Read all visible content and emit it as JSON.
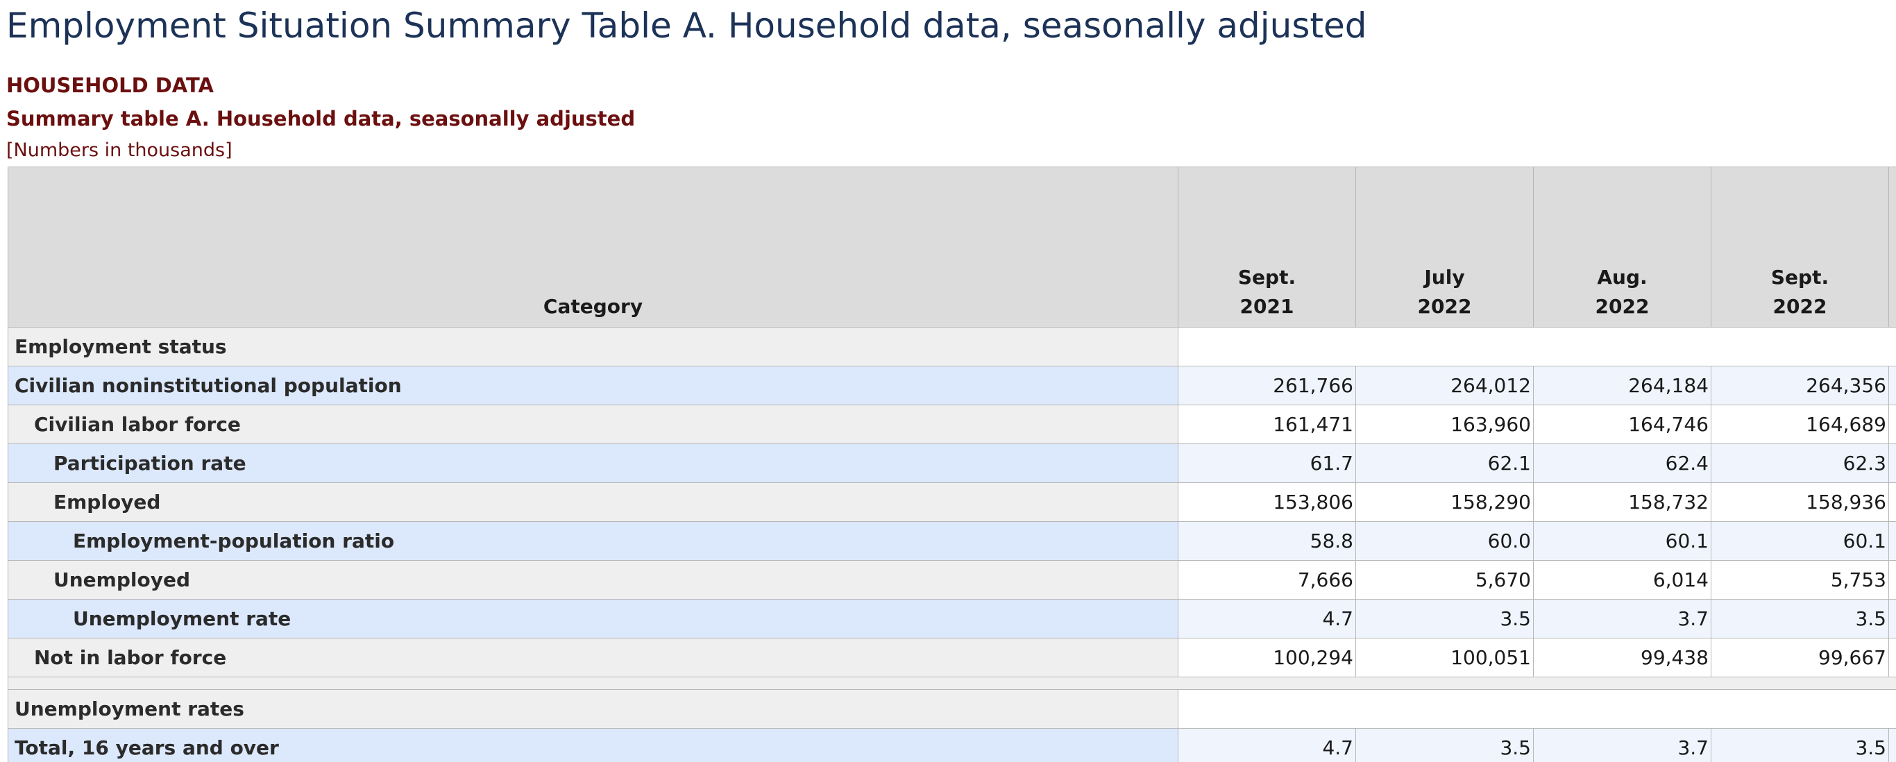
{
  "page": {
    "title": "Employment Situation Summary Table A. Household data, seasonally adjusted"
  },
  "table_header": {
    "section_label": "HOUSEHOLD DATA",
    "title": "Summary table A. Household data, seasonally adjusted",
    "units_note": "[Numbers in thousands]"
  },
  "columns": {
    "category": "Category",
    "periods": [
      {
        "month": "Sept.",
        "year": "2021"
      },
      {
        "month": "July",
        "year": "2022"
      },
      {
        "month": "Aug.",
        "year": "2022"
      },
      {
        "month": "Sept.",
        "year": "2022"
      },
      {
        "month": "",
        "year": ""
      }
    ]
  },
  "sections": {
    "employment_status": {
      "heading": "Employment status",
      "rows": [
        {
          "label": "Civilian noninstitutional population",
          "values": [
            "261,766",
            "264,012",
            "264,184",
            "264,356",
            ""
          ]
        },
        {
          "label": "Civilian labor force",
          "values": [
            "161,471",
            "163,960",
            "164,746",
            "164,689",
            ""
          ]
        },
        {
          "label": "Participation rate",
          "values": [
            "61.7",
            "62.1",
            "62.4",
            "62.3",
            ""
          ]
        },
        {
          "label": "Employed",
          "values": [
            "153,806",
            "158,290",
            "158,732",
            "158,936",
            ""
          ]
        },
        {
          "label": "Employment-population ratio",
          "values": [
            "58.8",
            "60.0",
            "60.1",
            "60.1",
            ""
          ]
        },
        {
          "label": "Unemployed",
          "values": [
            "7,666",
            "5,670",
            "6,014",
            "5,753",
            ""
          ]
        },
        {
          "label": "Unemployment rate",
          "values": [
            "4.7",
            "3.5",
            "3.7",
            "3.5",
            ""
          ]
        },
        {
          "label": "Not in labor force",
          "values": [
            "100,294",
            "100,051",
            "99,438",
            "99,667",
            ""
          ]
        }
      ]
    },
    "unemployment_rates": {
      "heading": "Unemployment rates",
      "rows": [
        {
          "label": "Total, 16 years and over",
          "values": [
            "4.7",
            "3.5",
            "3.7",
            "3.5",
            ""
          ]
        }
      ]
    }
  }
}
